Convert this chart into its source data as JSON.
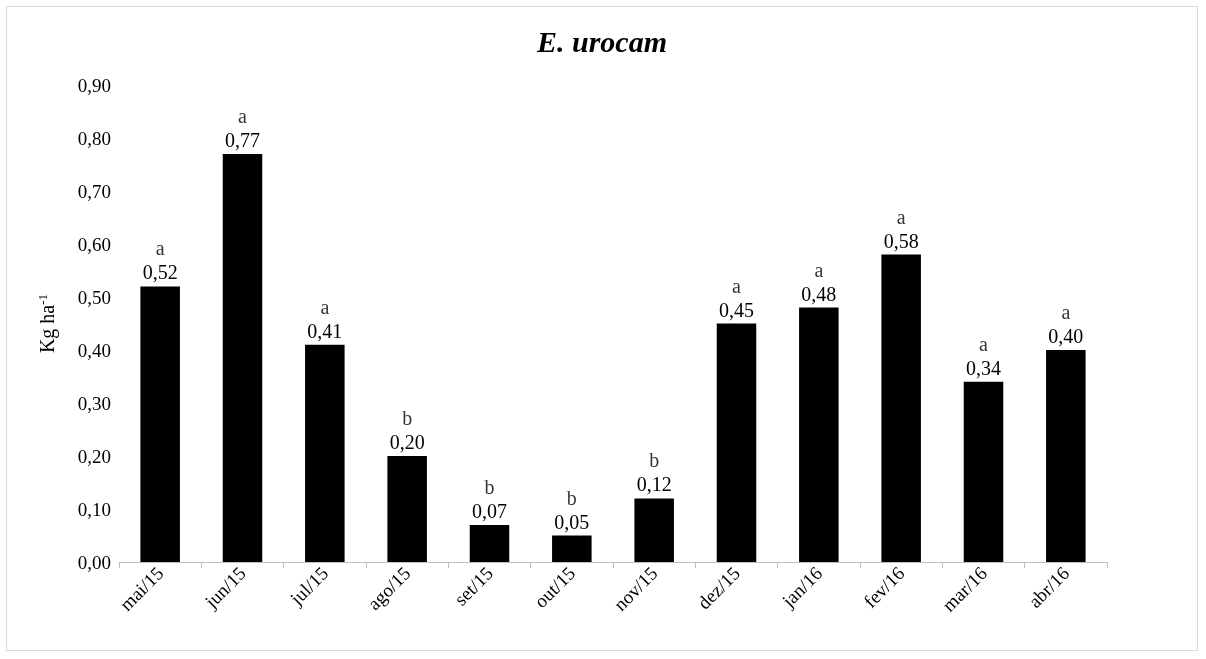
{
  "chart_data": {
    "type": "bar",
    "title": "E. urocam",
    "ylabel": "Kg ha$^{-1}$",
    "categories": [
      "mai/15",
      "jun/15",
      "jul/15",
      "ago/15",
      "set/15",
      "out/15",
      "nov/15",
      "dez/15",
      "jan/16",
      "fev/16",
      "mar/16",
      "abr/16"
    ],
    "values": [
      0.52,
      0.77,
      0.41,
      0.2,
      0.07,
      0.05,
      0.12,
      0.45,
      0.48,
      0.58,
      0.34,
      0.4
    ],
    "value_labels": [
      "0,52",
      "0,77",
      "0,41",
      "0,20",
      "0,07",
      "0,05",
      "0,12",
      "0,45",
      "0,48",
      "0,58",
      "0,34",
      "0,40"
    ],
    "color": "#000000",
    "ylim": [
      0,
      0.9
    ],
    "yticks": [
      {
        "value": 0,
        "label": "0,00"
      },
      {
        "value": 0.1,
        "label": "0,10"
      },
      {
        "value": 0.2,
        "label": "0,20"
      },
      {
        "value": 0.3,
        "label": "0,30"
      },
      {
        "value": 0.4,
        "label": "0,40"
      },
      {
        "value": 0.5,
        "label": "0,50"
      },
      {
        "value": 0.6,
        "label": "0,60"
      },
      {
        "value": 0.7,
        "label": "0,70"
      },
      {
        "value": 0.8,
        "label": "0,80"
      },
      {
        "value": 0.9,
        "label": "0,90"
      }
    ],
    "grid": false,
    "annotations": [
      {
        "text": "a",
        "x": "mai/15",
        "y": 0.52
      },
      {
        "text": "a",
        "x": "jun/15",
        "y": 0.77
      },
      {
        "text": "a",
        "x": "jul/15",
        "y": 0.41
      },
      {
        "text": "b",
        "x": "ago/15",
        "y": 0.2
      },
      {
        "text": "b",
        "x": "set/15",
        "y": 0.07
      },
      {
        "text": "b",
        "x": "out/15",
        "y": 0.05
      },
      {
        "text": "b",
        "x": "nov/15",
        "y": 0.12
      },
      {
        "text": "a",
        "x": "dez/15",
        "y": 0.45
      },
      {
        "text": "a",
        "x": "jan/16",
        "y": 0.48
      },
      {
        "text": "a",
        "x": "fev/16",
        "y": 0.58
      },
      {
        "text": "a",
        "x": "mar/16",
        "y": 0.34
      },
      {
        "text": "a",
        "x": "abr/16",
        "y": 0.4
      }
    ]
  }
}
